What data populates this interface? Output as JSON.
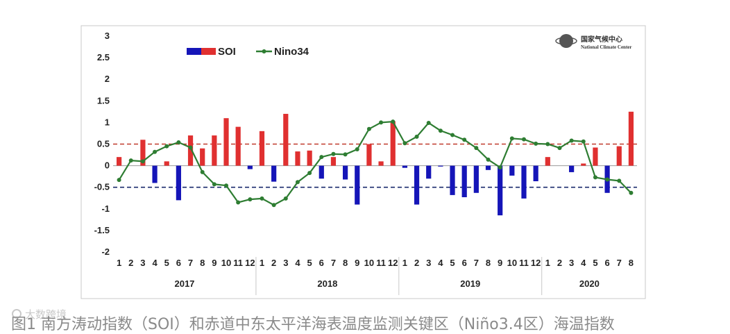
{
  "chart_data": {
    "type": "bar+line",
    "ylim": [
      -2,
      3
    ],
    "yticks": [
      "3",
      "2.5",
      "2",
      "1.5",
      "1",
      "0.5",
      "0",
      "-0.5",
      "-1",
      "-1.5",
      "-2"
    ],
    "ytick_values": [
      3,
      2.5,
      2,
      1.5,
      1,
      0.5,
      0,
      -0.5,
      -1,
      -1.5,
      -2
    ],
    "month_labels": [
      "1",
      "2",
      "3",
      "4",
      "5",
      "6",
      "7",
      "8",
      "9",
      "10",
      "11",
      "12",
      "1",
      "2",
      "3",
      "4",
      "5",
      "6",
      "7",
      "8",
      "9",
      "10",
      "11",
      "12",
      "1",
      "2",
      "3",
      "4",
      "5",
      "6",
      "7",
      "8",
      "9",
      "10",
      "11",
      "12",
      "1",
      "2",
      "3",
      "4",
      "5",
      "6",
      "7",
      "8"
    ],
    "years": [
      {
        "label": "2017",
        "months": 12
      },
      {
        "label": "2018",
        "months": 12
      },
      {
        "label": "2019",
        "months": 12
      },
      {
        "label": "2020",
        "months": 8
      }
    ],
    "reference_lines": [
      {
        "value": 0.5,
        "color": "#c0392b",
        "style": "dashed"
      },
      {
        "value": -0.5,
        "color": "#1a2a6c",
        "style": "dashed"
      }
    ],
    "series": [
      {
        "name": "SOI",
        "kind": "bar",
        "positive_color": "#e03030",
        "negative_color": "#1515b8",
        "values": [
          0.2,
          0.0,
          0.6,
          -0.4,
          0.1,
          -0.8,
          0.7,
          0.4,
          0.7,
          1.1,
          0.9,
          -0.08,
          0.8,
          -0.37,
          1.2,
          0.33,
          0.35,
          -0.3,
          0.2,
          -0.32,
          -0.9,
          0.5,
          0.1,
          1.03,
          -0.05,
          -0.9,
          -0.3,
          -0.02,
          -0.68,
          -0.73,
          -0.63,
          -0.1,
          -1.15,
          -0.23,
          -0.76,
          -0.36,
          0.2,
          0.0,
          -0.15,
          0.05,
          0.42,
          -0.63,
          0.45,
          1.25
        ]
      },
      {
        "name": "Nino34",
        "kind": "line",
        "color": "#2e7d32",
        "values": [
          -0.33,
          0.12,
          0.1,
          0.32,
          0.45,
          0.54,
          0.42,
          -0.15,
          -0.43,
          -0.46,
          -0.85,
          -0.78,
          -0.76,
          -0.91,
          -0.76,
          -0.38,
          -0.17,
          0.2,
          0.27,
          0.26,
          0.38,
          0.85,
          1.0,
          1.02,
          0.52,
          0.67,
          0.99,
          0.81,
          0.71,
          0.6,
          0.41,
          0.14,
          -0.04,
          0.63,
          0.61,
          0.51,
          0.5,
          0.41,
          0.58,
          0.56,
          -0.27,
          -0.32,
          -0.35,
          -0.63
        ]
      }
    ]
  },
  "logo": {
    "name_cn": "国家气候中心",
    "name_en": "National Climate Center"
  },
  "watermark": "大数跨境",
  "caption": "图1 南方涛动指数（SOI）和赤道中东太平洋海表温度监测关键区（Niño3.4区）海温指数"
}
